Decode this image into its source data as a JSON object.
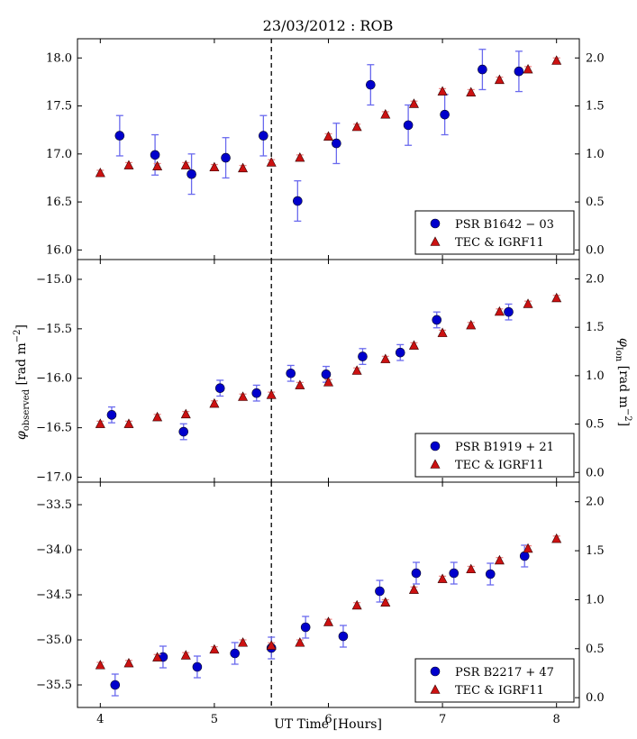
{
  "chart_data": {
    "type": "scatter",
    "title": "23/03/2012 : ROB",
    "xlabel": "UT Time [Hours]",
    "ylabel_left": "φ_observed [rad m^−2]",
    "ylabel_right": "φ_Ion [rad m^−2]",
    "xlim": [
      3.8,
      8.2
    ],
    "xticks": [
      4,
      5,
      6,
      7,
      8
    ],
    "xtick_labels": [
      "4",
      "5",
      "6",
      "7",
      "8"
    ],
    "vline_x": 5.5,
    "colors": {
      "pulsar": "#0000cc",
      "pulsar_err": "#6a6aee",
      "tec": "#cc1111",
      "tec_err": "#ee8888"
    },
    "panels": [
      {
        "ylim_left": [
          15.9,
          18.2
        ],
        "yticks_left": [
          16.0,
          16.5,
          17.0,
          17.5,
          18.0
        ],
        "ytick_labels_left": [
          "16.0",
          "16.5",
          "17.0",
          "17.5",
          "18.0"
        ],
        "ylim_right": [
          -0.1,
          2.2
        ],
        "yticks_right": [
          0.0,
          0.5,
          1.0,
          1.5,
          2.0
        ],
        "ytick_labels_right": [
          "0.0",
          "0.5",
          "1.0",
          "1.5",
          "2.0"
        ],
        "series": [
          {
            "name": "PSR B1642 − 03",
            "marker": "circle",
            "axis": "left",
            "x": [
              4.17,
              4.48,
              4.8,
              5.1,
              5.43,
              5.73,
              6.07,
              6.37,
              6.7,
              7.02,
              7.35,
              7.67
            ],
            "y": [
              17.19,
              16.99,
              16.79,
              16.96,
              17.19,
              16.51,
              17.11,
              17.72,
              17.3,
              17.41,
              17.88,
              17.86
            ],
            "err": [
              0.21,
              0.21,
              0.21,
              0.21,
              0.21,
              0.21,
              0.21,
              0.21,
              0.21,
              0.21,
              0.21,
              0.21
            ]
          },
          {
            "name": "TEC & IGRF11",
            "marker": "triangle",
            "axis": "right",
            "x": [
              4.0,
              4.25,
              4.5,
              4.75,
              5.0,
              5.25,
              5.5,
              5.75,
              6.0,
              6.25,
              6.5,
              6.75,
              7.0,
              7.25,
              7.5,
              7.75,
              8.0
            ],
            "y": [
              0.8,
              0.88,
              0.87,
              0.88,
              0.86,
              0.85,
              0.91,
              0.96,
              1.18,
              1.28,
              1.41,
              1.52,
              1.65,
              1.64,
              1.77,
              1.88,
              1.97
            ],
            "err": [
              0.03,
              0.03,
              0.03,
              0.03,
              0.03,
              0.03,
              0.03,
              0.03,
              0.03,
              0.03,
              0.03,
              0.03,
              0.03,
              0.03,
              0.03,
              0.03,
              0.03
            ]
          }
        ],
        "legend": [
          "PSR B1642 − 03",
          "TEC & IGRF11"
        ],
        "legend_loc": "lower-right"
      },
      {
        "ylim_left": [
          -17.05,
          -14.8
        ],
        "yticks_left": [
          -17.0,
          -16.5,
          -16.0,
          -15.5,
          -15.0
        ],
        "ytick_labels_left": [
          "−17.0",
          "−16.5",
          "−16.0",
          "−15.5",
          "−15.0"
        ],
        "ylim_right": [
          -0.1,
          2.2
        ],
        "yticks_right": [
          0.0,
          0.5,
          1.0,
          1.5,
          2.0
        ],
        "ytick_labels_right": [
          "0.0",
          "0.5",
          "1.0",
          "1.5",
          "2.0"
        ],
        "series": [
          {
            "name": "PSR B1919 + 21",
            "marker": "circle",
            "axis": "left",
            "x": [
              4.1,
              4.73,
              5.05,
              5.37,
              5.67,
              5.98,
              6.3,
              6.63,
              6.95,
              7.58
            ],
            "y": [
              -16.37,
              -16.54,
              -16.1,
              -16.15,
              -15.95,
              -15.96,
              -15.78,
              -15.74,
              -15.41,
              -15.33
            ],
            "err": [
              0.08,
              0.08,
              0.08,
              0.08,
              0.08,
              0.08,
              0.08,
              0.08,
              0.08,
              0.08
            ]
          },
          {
            "name": "TEC & IGRF11",
            "marker": "triangle",
            "axis": "right",
            "x": [
              4.0,
              4.25,
              4.5,
              4.75,
              5.0,
              5.25,
              5.5,
              5.75,
              6.0,
              6.25,
              6.5,
              6.75,
              7.0,
              7.25,
              7.5,
              7.75,
              8.0
            ],
            "y": [
              0.5,
              0.5,
              0.57,
              0.6,
              0.71,
              0.78,
              0.8,
              0.9,
              0.93,
              1.05,
              1.17,
              1.31,
              1.44,
              1.52,
              1.66,
              1.74,
              1.8
            ],
            "err": [
              0.03,
              0.03,
              0.03,
              0.03,
              0.03,
              0.03,
              0.03,
              0.03,
              0.03,
              0.03,
              0.03,
              0.03,
              0.03,
              0.03,
              0.03,
              0.03,
              0.03
            ]
          }
        ],
        "legend": [
          "PSR B1919 + 21",
          "TEC & IGRF11"
        ],
        "legend_loc": "lower-right"
      },
      {
        "ylim_left": [
          -35.75,
          -33.25
        ],
        "yticks_left": [
          -35.5,
          -35.0,
          -34.5,
          -34.0,
          -33.5
        ],
        "ytick_labels_left": [
          "−35.5",
          "−35.0",
          "−34.5",
          "−34.0",
          "−33.5"
        ],
        "ylim_right": [
          -0.1,
          2.2
        ],
        "yticks_right": [
          0.0,
          0.5,
          1.0,
          1.5,
          2.0
        ],
        "ytick_labels_right": [
          "0.0",
          "0.5",
          "1.0",
          "1.5",
          "2.0"
        ],
        "series": [
          {
            "name": "PSR B2217 + 47",
            "marker": "circle",
            "axis": "left",
            "x": [
              4.13,
              4.55,
              4.85,
              5.18,
              5.5,
              5.8,
              6.13,
              6.45,
              6.77,
              7.1,
              7.42,
              7.72
            ],
            "y": [
              -35.5,
              -35.19,
              -35.3,
              -35.15,
              -35.09,
              -34.86,
              -34.96,
              -34.46,
              -34.26,
              -34.26,
              -34.27,
              -34.07
            ],
            "err": [
              0.12,
              0.12,
              0.12,
              0.12,
              0.12,
              0.12,
              0.12,
              0.12,
              0.12,
              0.12,
              0.12,
              0.12
            ]
          },
          {
            "name": "TEC & IGRF11",
            "marker": "triangle",
            "axis": "right",
            "x": [
              4.0,
              4.25,
              4.5,
              4.75,
              5.0,
              5.25,
              5.5,
              5.75,
              6.0,
              6.25,
              6.5,
              6.75,
              7.0,
              7.25,
              7.5,
              7.75,
              8.0
            ],
            "y": [
              0.33,
              0.35,
              0.41,
              0.43,
              0.49,
              0.56,
              0.53,
              0.56,
              0.77,
              0.94,
              0.97,
              1.1,
              1.21,
              1.31,
              1.4,
              1.52,
              1.62
            ],
            "err": [
              0.03,
              0.03,
              0.03,
              0.03,
              0.03,
              0.03,
              0.03,
              0.03,
              0.03,
              0.03,
              0.03,
              0.03,
              0.03,
              0.03,
              0.03,
              0.03,
              0.03
            ]
          }
        ],
        "legend": [
          "PSR B2217 + 47",
          "TEC & IGRF11"
        ],
        "legend_loc": "lower-right"
      }
    ]
  }
}
